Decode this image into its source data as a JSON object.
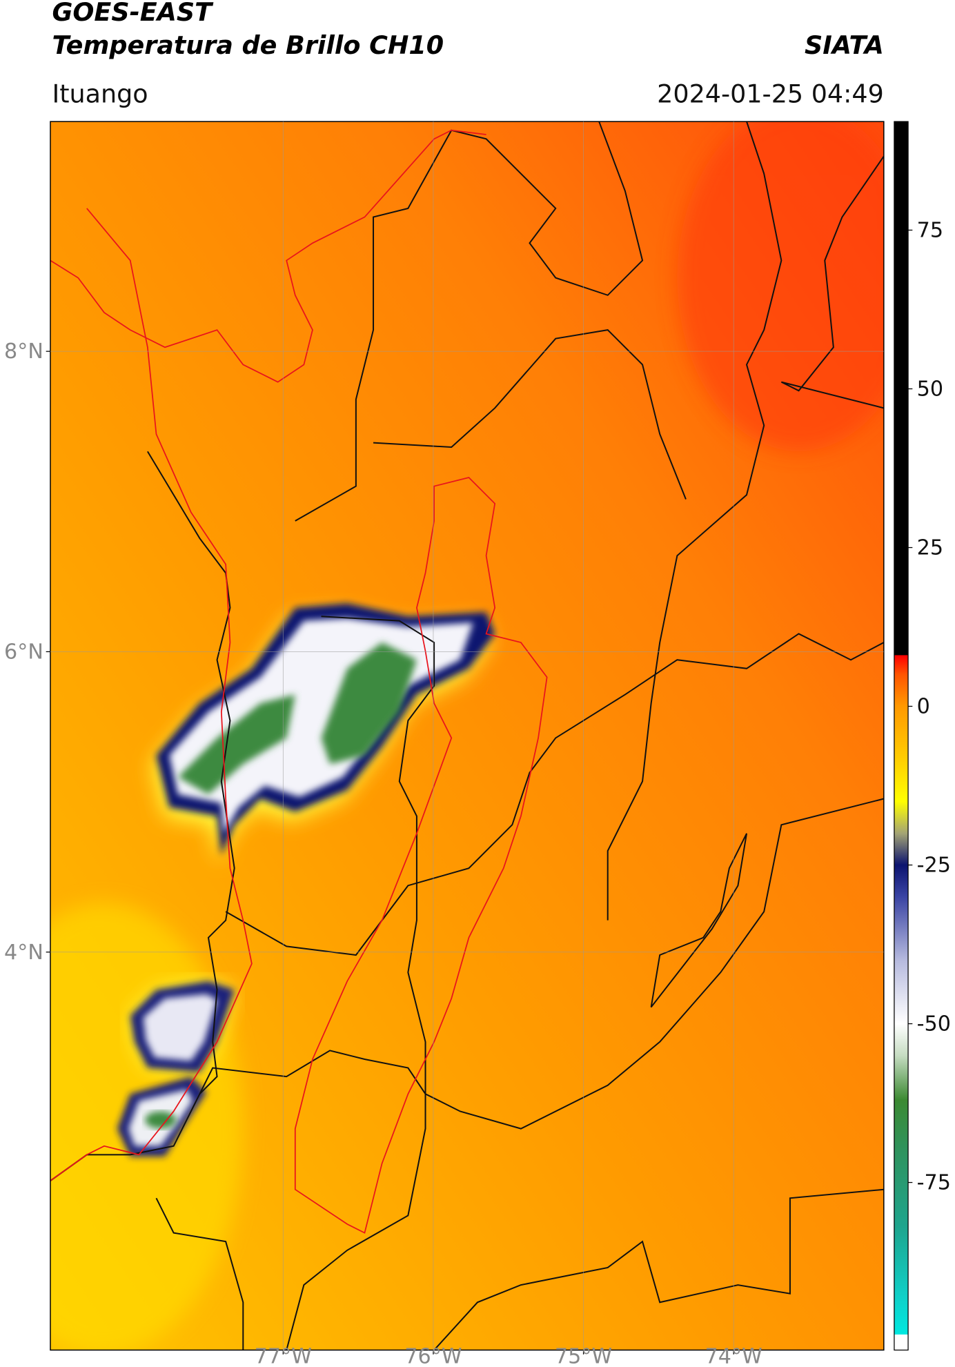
{
  "header": {
    "title": "GOES-EAST",
    "subtitle": "Temperatura de Brillo CH10",
    "source": "SIATA",
    "location": "Ituango",
    "datetime": "2024-01-25 04:49"
  },
  "map": {
    "xlim": [
      -78.55,
      -73.0
    ],
    "ylim": [
      1.35,
      9.53
    ],
    "xticks": [
      {
        "value": -77,
        "label": "77°W"
      },
      {
        "value": -76,
        "label": "76°W"
      },
      {
        "value": -75,
        "label": "75°W"
      },
      {
        "value": -74,
        "label": "74°W"
      }
    ],
    "yticks": [
      {
        "value": 4,
        "label": "4°N"
      },
      {
        "value": 6,
        "label": "6°N"
      },
      {
        "value": 8,
        "label": "8°N"
      }
    ],
    "grid": true
  },
  "colorbar": {
    "lim": [
      -101.4,
      92.1
    ],
    "ticks": [
      -75,
      -50,
      -25,
      0,
      25,
      50,
      75
    ],
    "colormap": [
      {
        "value": -101.4,
        "color": "#ffffff"
      },
      {
        "value": -99,
        "color": "#ffffff"
      },
      {
        "value": -98.9,
        "color": "#00e8e0"
      },
      {
        "value": -93,
        "color": "#10d0c8"
      },
      {
        "value": -82,
        "color": "#1ea58e"
      },
      {
        "value": -70,
        "color": "#2f935e"
      },
      {
        "value": -62,
        "color": "#3c8a32"
      },
      {
        "value": -55,
        "color": "#c6dcc2"
      },
      {
        "value": -50,
        "color": "#ffffff"
      },
      {
        "value": -40,
        "color": "#b6bade"
      },
      {
        "value": -30,
        "color": "#3a44a4"
      },
      {
        "value": -25,
        "color": "#0c1470"
      },
      {
        "value": -20,
        "color": "#a4a474"
      },
      {
        "value": -15,
        "color": "#ffff00"
      },
      {
        "value": -8,
        "color": "#ffcc00"
      },
      {
        "value": 0,
        "color": "#ff9900"
      },
      {
        "value": 5,
        "color": "#ff5500"
      },
      {
        "value": 8,
        "color": "#ff0000"
      },
      {
        "value": 8.1,
        "color": "#000000"
      },
      {
        "value": 92.1,
        "color": "#000000"
      }
    ]
  }
}
